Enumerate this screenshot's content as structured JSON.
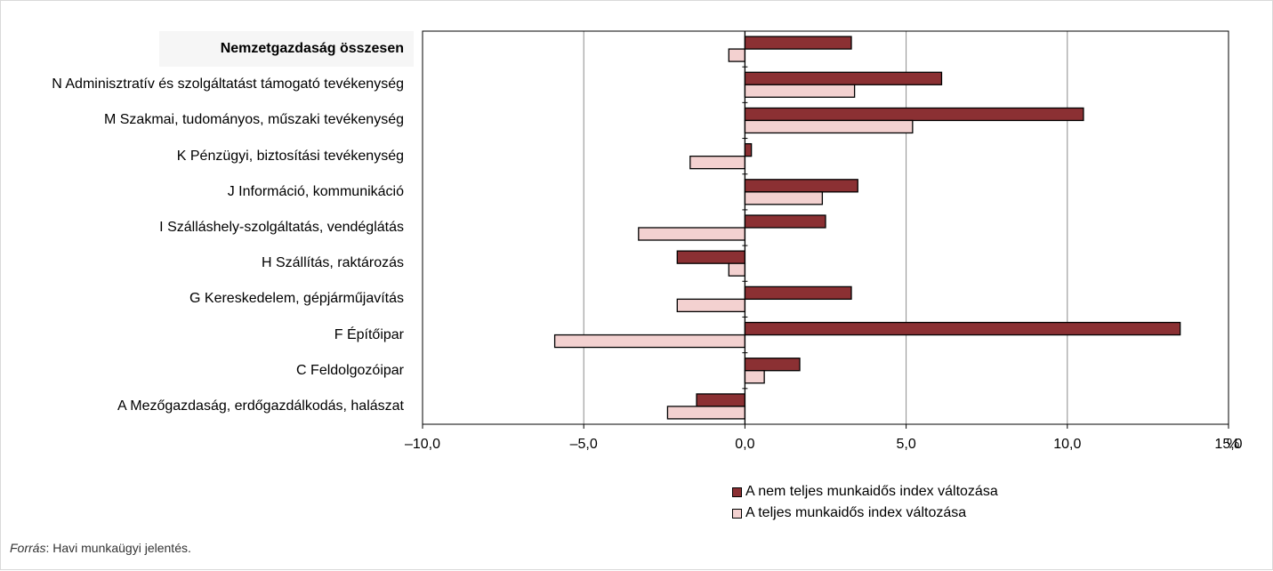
{
  "chart_data": {
    "type": "bar",
    "orientation": "horizontal",
    "categories": [
      "Nemzetgazdaság összesen",
      "N  Adminisztratív és szolgáltatást támogató tevékenység",
      "M Szakmai, tudományos, műszaki tevékenység",
      "K Pénzügyi, biztosítási tevékenység",
      "J Információ, kommunikáció",
      "I Szálláshely-szolgáltatás, vendéglátás",
      "H Szállítás, raktározás",
      "G Kereskedelem, gépjárműjavítás",
      "F Építőipar",
      "C Feldolgozóipar",
      "A Mezőgazdaság, erdőgazdálkodás, halászat"
    ],
    "series": [
      {
        "name": "A nem teljes munkaidős index változása",
        "color": "#8b3033",
        "values": [
          3.3,
          6.1,
          10.5,
          0.2,
          3.5,
          2.5,
          -2.1,
          3.3,
          13.5,
          1.7,
          -1.5
        ]
      },
      {
        "name": "A teljes munkaidős index változása",
        "color": "#f3d1d0",
        "values": [
          -0.5,
          3.4,
          5.2,
          -1.7,
          2.4,
          -3.3,
          -0.5,
          -2.1,
          -5.9,
          0.6,
          -2.4
        ]
      }
    ],
    "xlim": [
      -10,
      15
    ],
    "xticks": [
      "–10,0",
      "–5,0",
      "0,0",
      "5,0",
      "10,0",
      "15,0"
    ],
    "xunit": "%",
    "grid": true,
    "legend_position": "bottom"
  },
  "source": {
    "label": "Forrás",
    "text": ": Havi munkaügyi jelentés."
  }
}
